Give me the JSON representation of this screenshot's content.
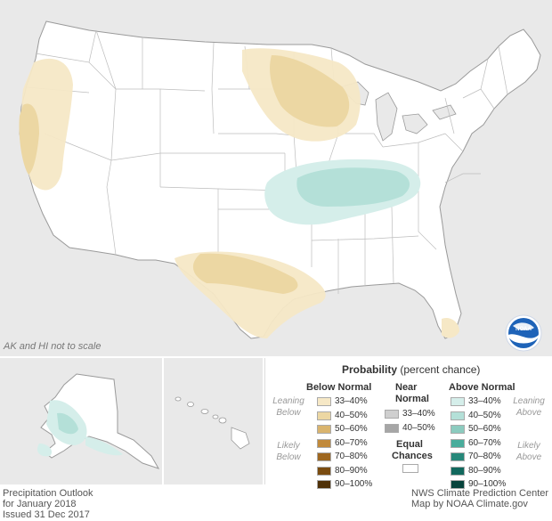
{
  "scale_note": "AK and HI not to scale",
  "legend": {
    "title_bold": "Probability",
    "title_rest": "(percent chance)",
    "below": {
      "heading": "Below Normal",
      "leaning": [
        "Leaning",
        "Below"
      ],
      "likely": [
        "Likely",
        "Below"
      ],
      "items": [
        {
          "label": "33–40%",
          "color": "#f6e8c6"
        },
        {
          "label": "40–50%",
          "color": "#ecd7a3"
        },
        {
          "label": "50–60%",
          "color": "#d9b46e"
        },
        {
          "label": "60–70%",
          "color": "#c18a3b"
        },
        {
          "label": "70–80%",
          "color": "#9e6720"
        },
        {
          "label": "80–90%",
          "color": "#7a4c10"
        },
        {
          "label": "90–100%",
          "color": "#4f3108"
        }
      ]
    },
    "near": {
      "heading": [
        "Near",
        "Normal"
      ],
      "items": [
        {
          "label": "33–40%",
          "color": "#cfcfcf"
        },
        {
          "label": "40–50%",
          "color": "#a6a6a6"
        }
      ]
    },
    "equal": {
      "heading": [
        "Equal",
        "Chances"
      ],
      "color": "#ffffff"
    },
    "above": {
      "heading": "Above Normal",
      "leaning": [
        "Leaning",
        "Above"
      ],
      "likely": [
        "Likely",
        "Above"
      ],
      "items": [
        {
          "label": "33–40%",
          "color": "#d5eeea"
        },
        {
          "label": "40–50%",
          "color": "#b4e0d8"
        },
        {
          "label": "50–60%",
          "color": "#8ccbbf"
        },
        {
          "label": "60–70%",
          "color": "#49ad9c"
        },
        {
          "label": "70–80%",
          "color": "#27887a"
        },
        {
          "label": "80–90%",
          "color": "#11685d"
        },
        {
          "label": "90–100%",
          "color": "#07433c"
        }
      ]
    }
  },
  "footer_left": [
    "Precipitation Outlook",
    "for January 2018",
    "Issued 31 Dec 2017"
  ],
  "footer_right": [
    "NWS Climate Prediction Center",
    "Map by NOAA Climate.gov"
  ],
  "logo_text": "NOAA"
}
